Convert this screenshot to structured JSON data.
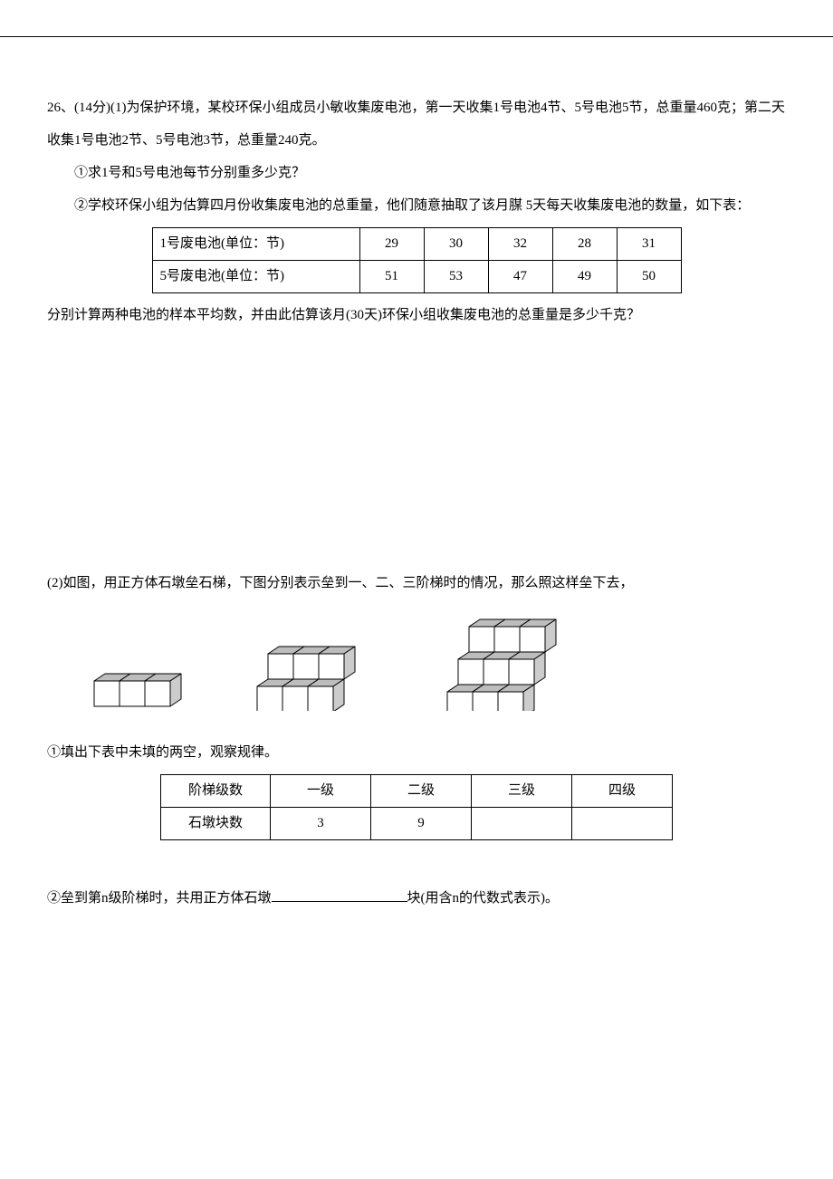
{
  "p26_intro": "26、(14分)(1)为保护环境，某校环保小组成员小敏收集废电池，第一天收集1号电池4节、5号电池5节，总重量460克；第二天收集1号电池2节、5号电池3节，总重量240克。",
  "q1": "①求1号和5号电池每节分别重多少克？",
  "q2": "②学校环保小组为估算四月份收集废电池的总重量，他们随意抽取了该月腜 5天每天收集废电池的数量，如下表：",
  "table1": {
    "row1_label": "1号废电池(单位：节)",
    "row1_vals": [
      "29",
      "30",
      "32",
      "28",
      "31"
    ],
    "row2_label": "5号废电池(单位：节)",
    "row2_vals": [
      "51",
      "53",
      "47",
      "49",
      "50"
    ]
  },
  "after_t1": "分别计算两种电池的样本平均数，并由此估算该月(30天)环保小组收集废电池的总重量是多少千克？",
  "p2_intro": "(2)如图，用正方体石墩垒石梯，下图分别表示垒到一、二、三阶梯时的情况，那么照这样垒下去，",
  "q21": "①填出下表中未填的两空，观察规律。",
  "table2": {
    "r1": [
      "阶梯级数",
      "一级",
      "二级",
      "三级",
      "四级"
    ],
    "r2": [
      "石墩块数",
      "3",
      "9",
      "",
      ""
    ]
  },
  "q22_a": "②垒到第n级阶梯时，共用正方体石墩",
  "q22_b": "块(用含n的代数式表示)。",
  "figures": {
    "cube_stroke": "#000000",
    "cube_top_fill": "#bdbdbd",
    "cube_side_fill": "#cccccc",
    "cube_front_fill": "#ffffff"
  }
}
